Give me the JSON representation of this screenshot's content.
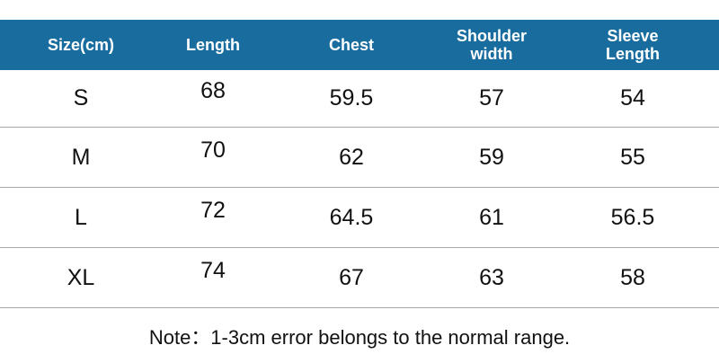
{
  "header": {
    "columns": [
      "Size(cm)",
      "Length",
      "Chest",
      "Shoulder width",
      "Sleeve Length"
    ]
  },
  "table": {
    "rows": [
      [
        "S",
        "68",
        "59.5",
        "57",
        "54"
      ],
      [
        "M",
        "70",
        "62",
        "59",
        "55"
      ],
      [
        "L",
        "72",
        "64.5",
        "61",
        "56.5"
      ],
      [
        "XL",
        "74",
        "67",
        "63",
        "58"
      ]
    ]
  },
  "note": "Note：1-3cm error belongs to the normal range."
}
